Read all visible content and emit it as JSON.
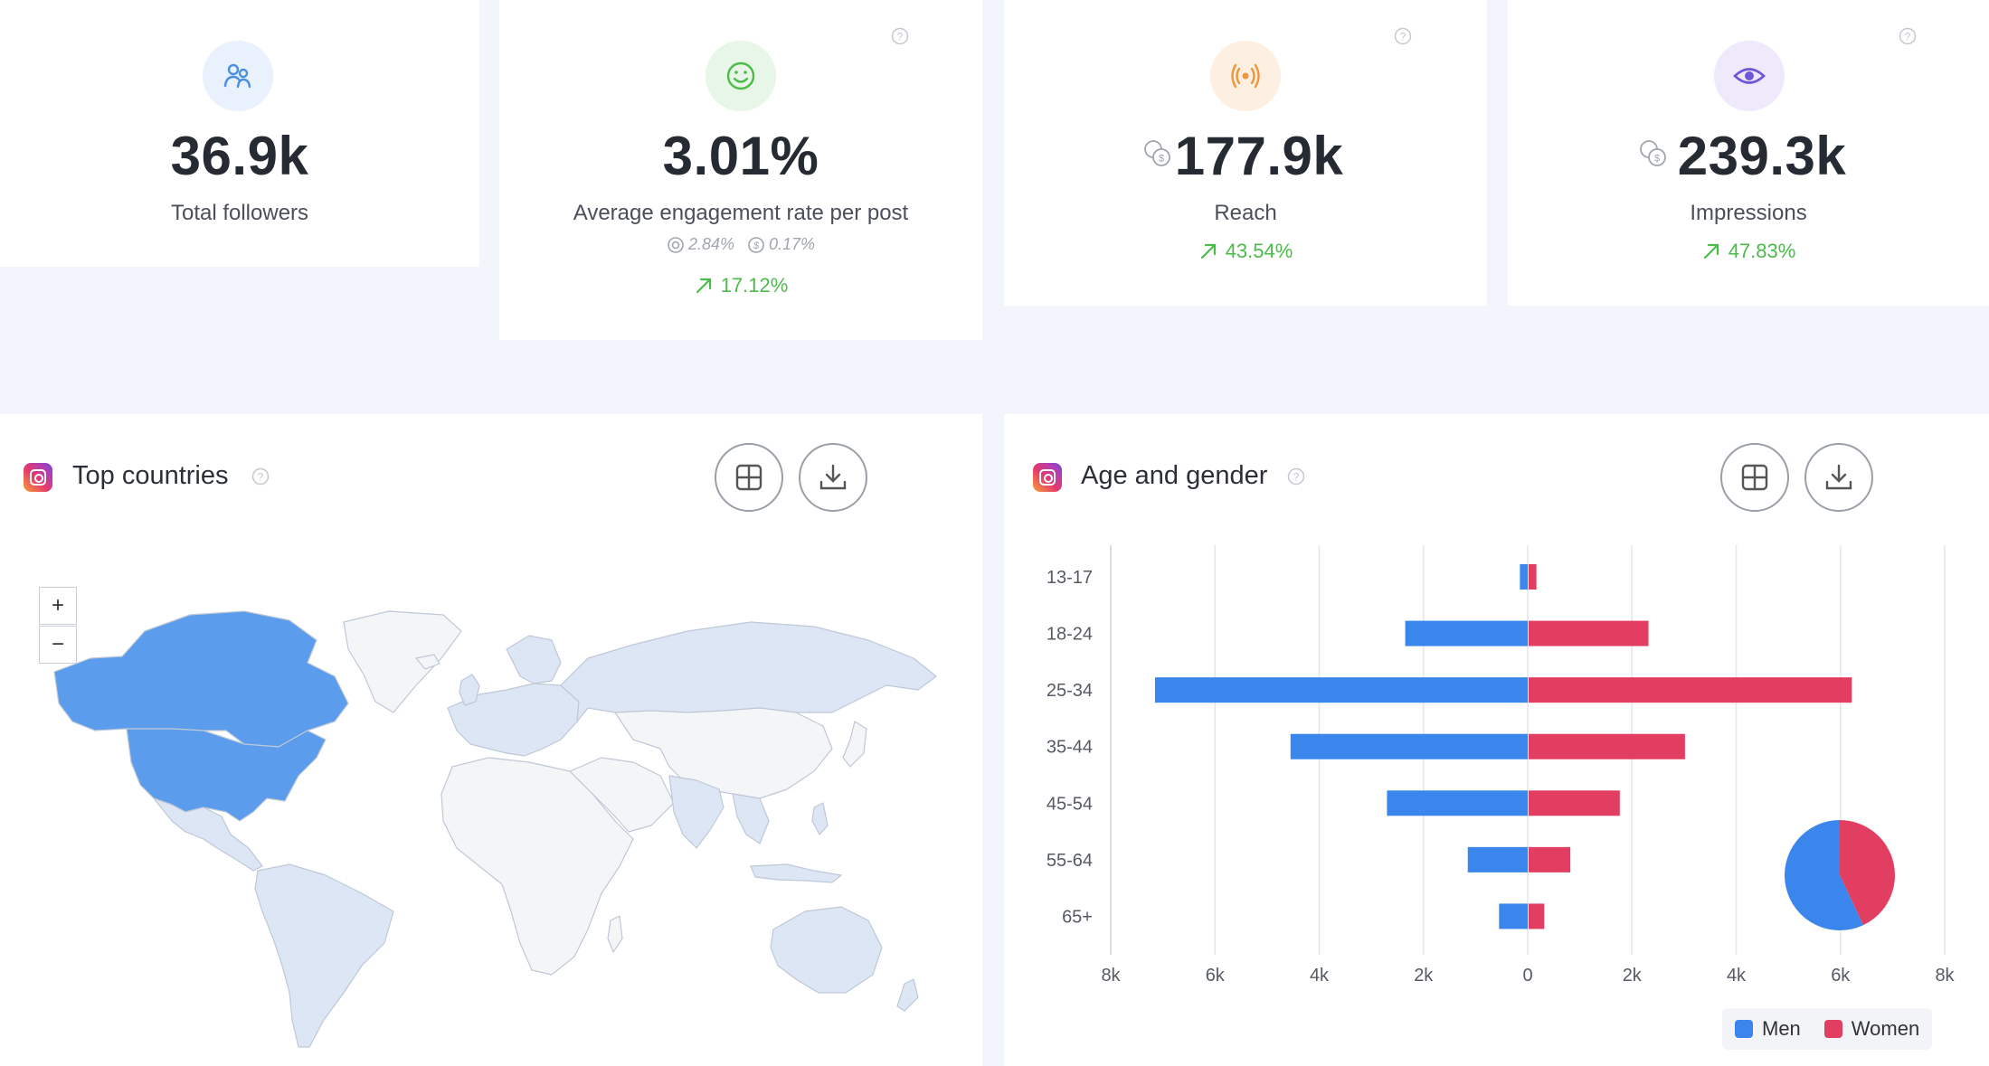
{
  "stats": {
    "followers": {
      "value": "36.9k",
      "label": "Total followers"
    },
    "engagement": {
      "value": "3.01%",
      "label": "Average engagement rate per post",
      "organic": "2.84%",
      "paid": "0.17%",
      "change": "17.12%"
    },
    "reach": {
      "value": "177.9k",
      "label": "Reach",
      "change": "43.54%"
    },
    "impressions": {
      "value": "239.3k",
      "label": "Impressions",
      "change": "47.83%"
    }
  },
  "countries_panel": {
    "title": "Top countries",
    "zoom_in": "+",
    "zoom_out": "−"
  },
  "age_panel": {
    "title": "Age and gender",
    "legend": {
      "men": "Men",
      "women": "Women"
    }
  },
  "colors": {
    "men": "#3b86ec",
    "women": "#e23e61",
    "positive": "#4cbb4a",
    "map_highlight": "#5b9cec",
    "map_light": "#dce6f4"
  },
  "icons": {
    "followers": "people-icon",
    "engagement": "smile-icon",
    "reach": "broadcast-icon",
    "impressions": "eye-icon"
  },
  "chart_data": [
    {
      "type": "bar",
      "orientation": "horizontal",
      "categories": [
        "13-17",
        "18-24",
        "25-34",
        "35-44",
        "45-54",
        "55-64",
        "65+"
      ],
      "series": [
        {
          "name": "Men",
          "values": [
            150,
            2350,
            7150,
            4550,
            2700,
            1150,
            550
          ]
        },
        {
          "name": "Women",
          "values": [
            150,
            2300,
            6200,
            3000,
            1750,
            800,
            300
          ]
        }
      ],
      "xlim": [
        -8000,
        8000
      ],
      "xticks": [
        "8k",
        "6k",
        "4k",
        "2k",
        "0",
        "2k",
        "4k",
        "6k",
        "8k"
      ],
      "grid": true,
      "legend": "bottom-right"
    },
    {
      "type": "pie",
      "labels": [
        "Men",
        "Women"
      ],
      "values": [
        57,
        43
      ]
    }
  ]
}
